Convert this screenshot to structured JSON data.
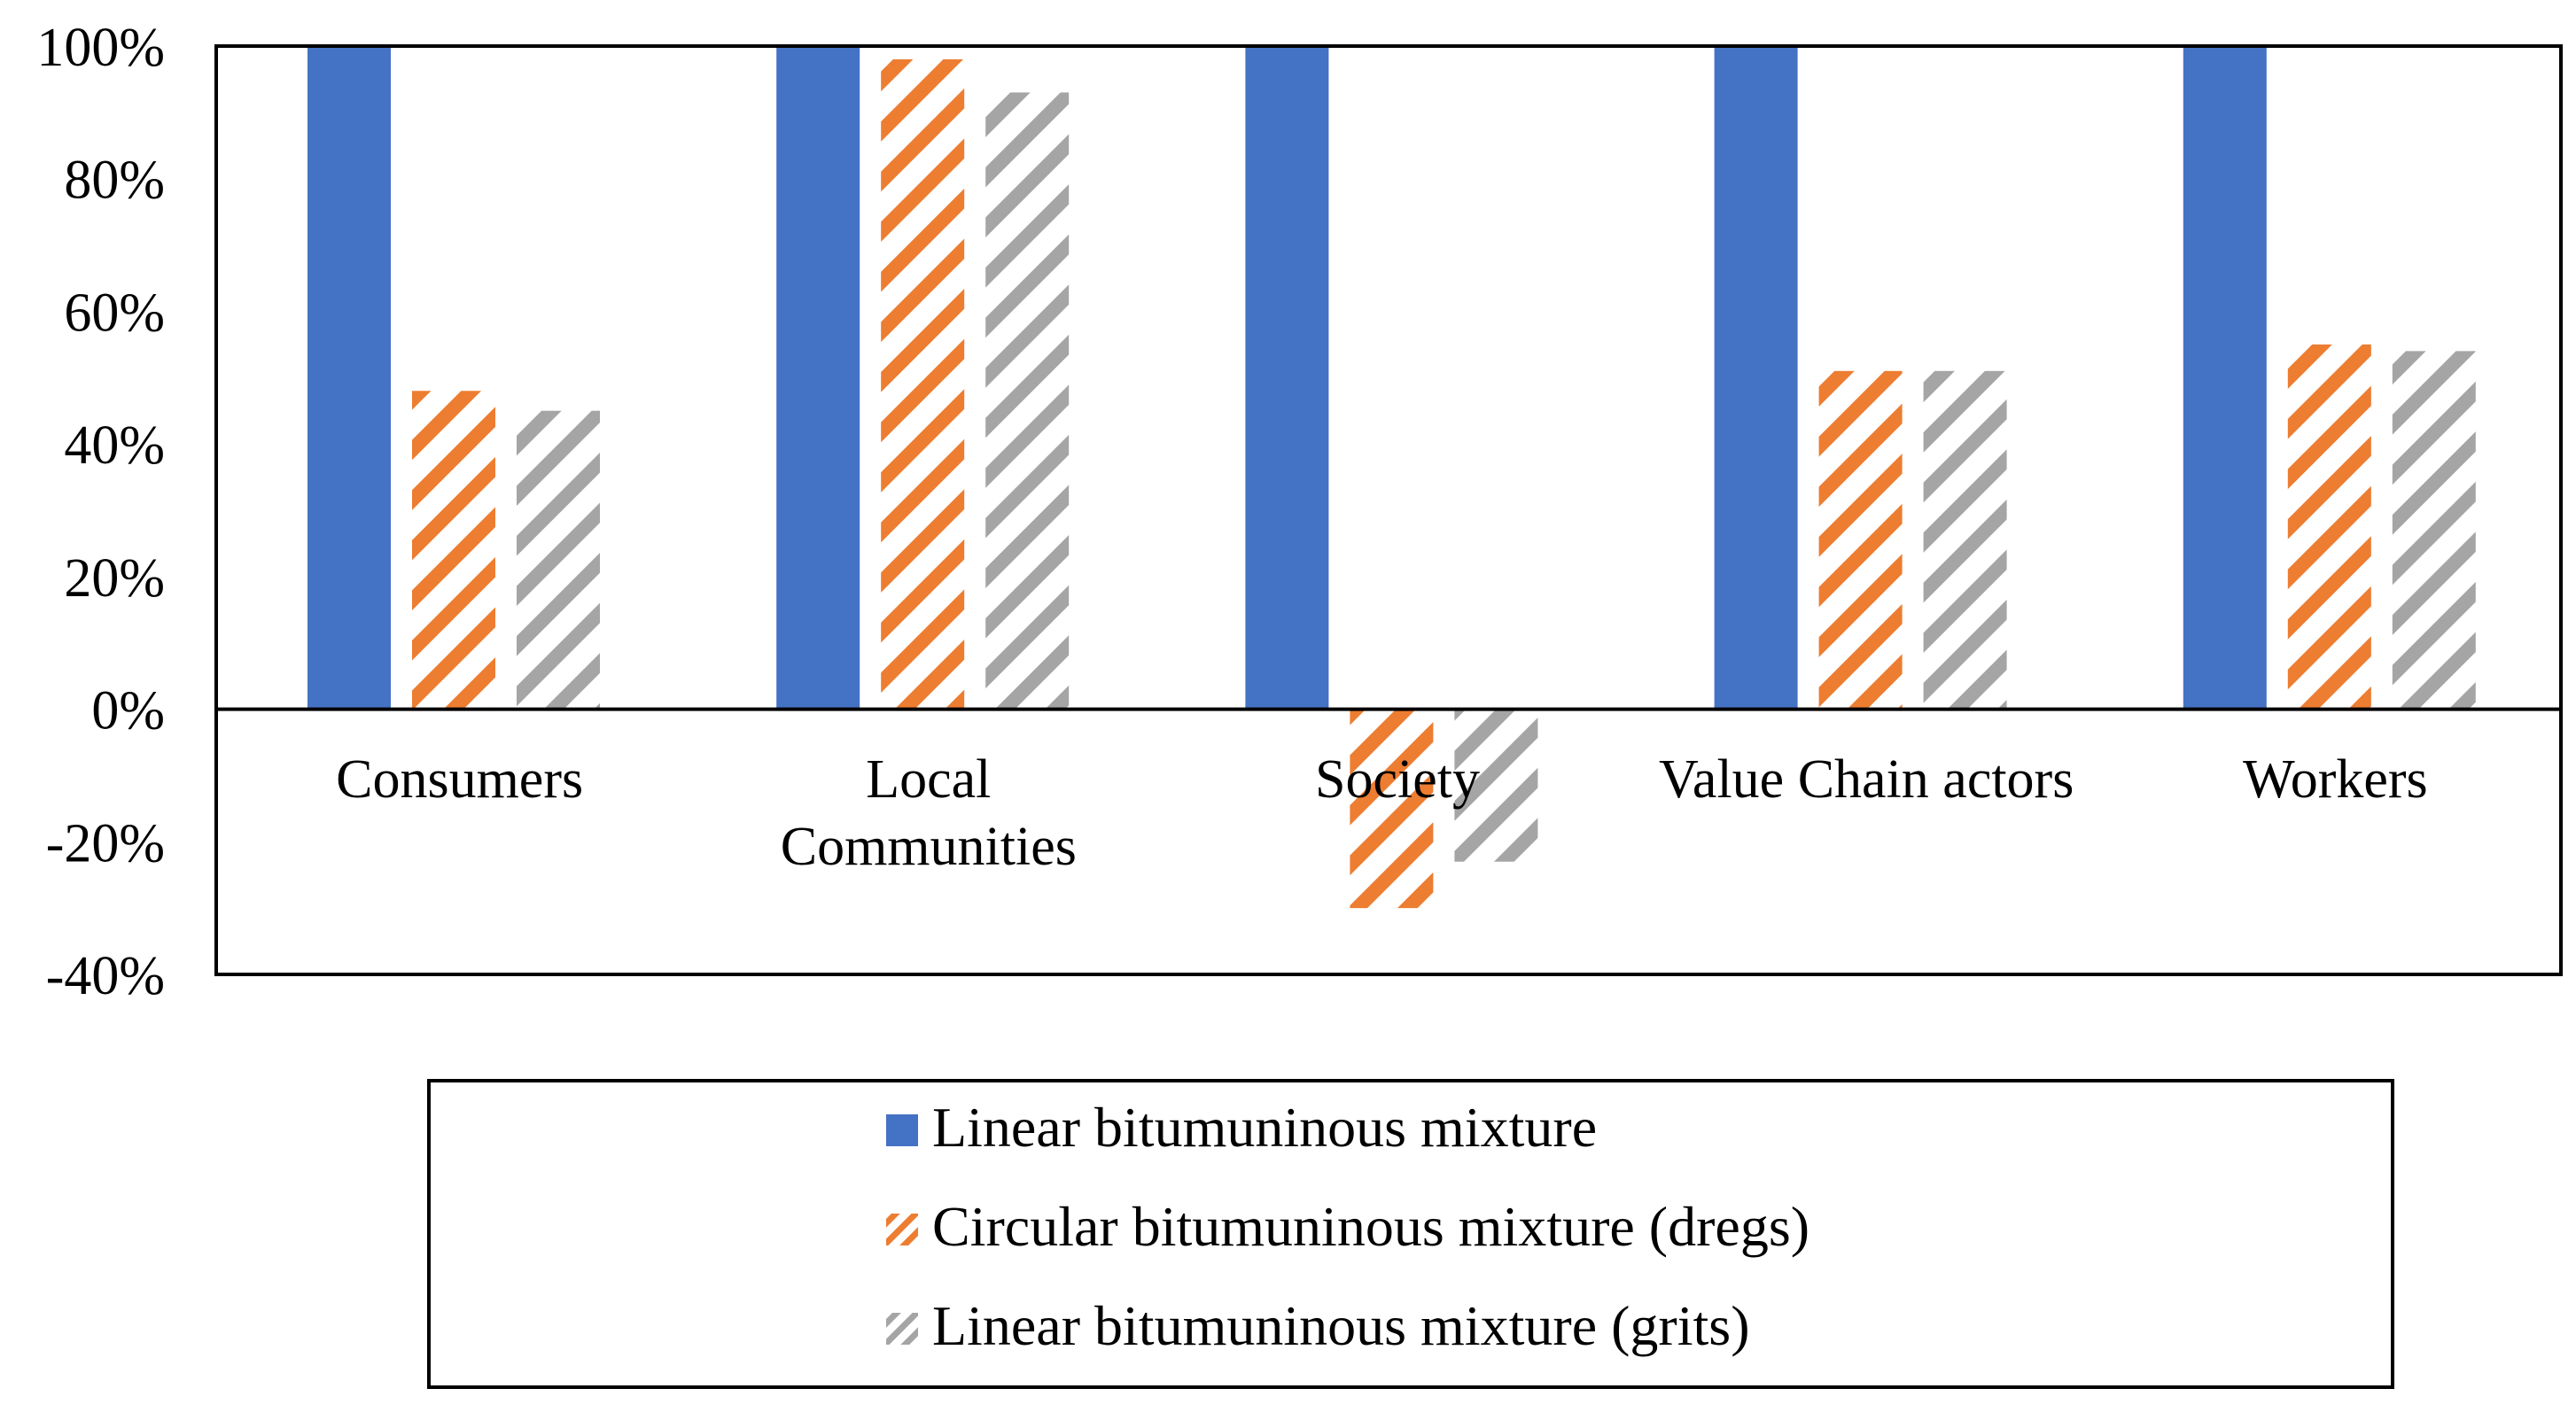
{
  "chart_data": {
    "type": "bar",
    "title": "",
    "xlabel": "",
    "ylabel": "",
    "ylim": [
      -40,
      100
    ],
    "yticks": [
      "100%",
      "80%",
      "60%",
      "40%",
      "20%",
      "0%",
      "-20%",
      "-40%"
    ],
    "ytick_values": [
      100,
      80,
      60,
      40,
      20,
      0,
      -20,
      -40
    ],
    "categories": [
      "Consumers",
      "Local Communities",
      "Society",
      "Value Chain actors",
      "Workers"
    ],
    "category_lines": [
      [
        "Consumers"
      ],
      [
        "Local",
        "Communities"
      ],
      [
        "Society"
      ],
      [
        "Value Chain actors"
      ],
      [
        "Workers"
      ]
    ],
    "series": [
      {
        "name": "Linear bitumuninous mixture",
        "color": "#4472C4",
        "pattern": "solid",
        "values": [
          100,
          100,
          100,
          100,
          100
        ]
      },
      {
        "name": "Circular bitumuninous mixture (dregs)",
        "color": "#ED7D31",
        "pattern": "diagonal",
        "values": [
          48,
          98,
          -30,
          51,
          55
        ]
      },
      {
        "name": "Linear bitumuninous mixture (grits)",
        "color": "#A5A5A5",
        "pattern": "diagonal",
        "values": [
          45,
          93,
          -23,
          51,
          54
        ]
      }
    ],
    "legend_position": "bottom",
    "grid": false
  }
}
